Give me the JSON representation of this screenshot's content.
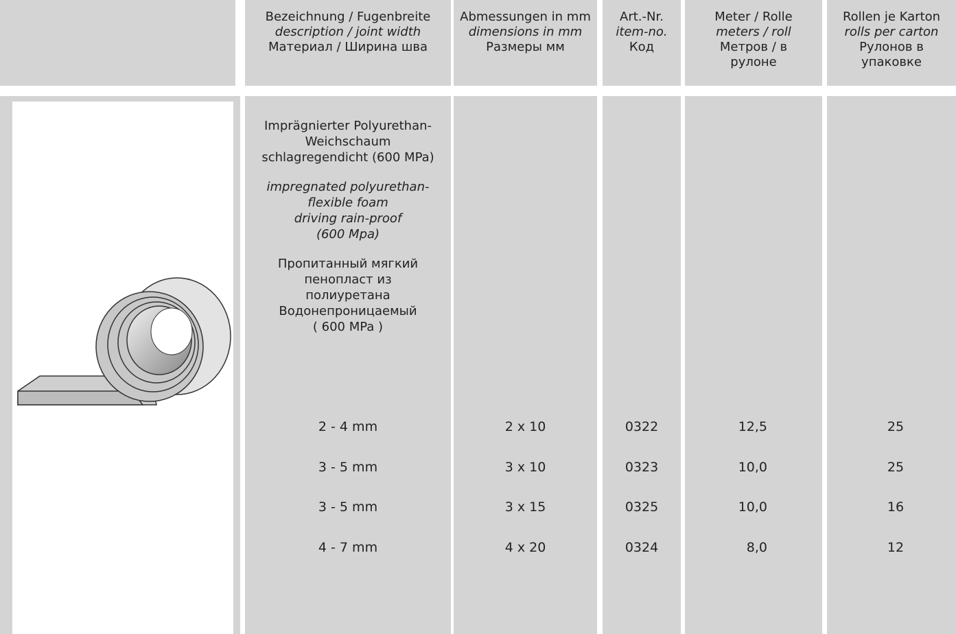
{
  "header": {
    "columns": [
      {
        "lines": [
          "Bezeichnung / Fugenbreite",
          "description / joint width",
          "Материал / Ширина шва"
        ]
      },
      {
        "lines": [
          "Abmessungen in mm",
          "dimensions in mm",
          "Размеры мм"
        ]
      },
      {
        "lines": [
          "Art.-Nr.",
          "item-no.",
          "Код"
        ]
      },
      {
        "lines": [
          "Meter / Rolle",
          "meters / roll",
          "Метров / в",
          "рулоне"
        ]
      },
      {
        "lines": [
          "Rollen je Karton",
          "rolls per carton",
          "Рулонов в",
          "упаковке"
        ]
      }
    ]
  },
  "description": {
    "blocks": [
      [
        "Imprägnierter Polyurethan-",
        "Weichschaum",
        "schlagregendicht (600 MPa)"
      ],
      [
        "impregnated polyurethan-",
        "flexible foam",
        "driving rain-proof",
        "(600 Mpa)"
      ],
      [
        "Пропитанный мягкий",
        "пенопласт из",
        "полиуретана",
        "Водонепроницаемый",
        "( 600 MPa )"
      ]
    ]
  },
  "table": {
    "rows": [
      [
        "2 - 4 mm",
        "2 x 10",
        "0322",
        "12,5",
        "25"
      ],
      [
        "3 - 5 mm",
        "3 x 10",
        "0323",
        "10,0",
        "25"
      ],
      [
        "3 - 5 mm",
        "3 x 15",
        "0325",
        "10,0",
        "16"
      ],
      [
        "4 - 7 mm",
        "4 x 20",
        "0324",
        "8,0",
        "12"
      ]
    ]
  }
}
